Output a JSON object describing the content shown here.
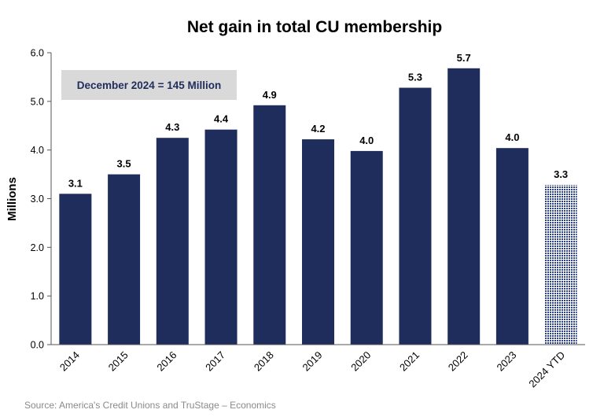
{
  "chart_data": {
    "type": "bar",
    "title": "Net gain in total CU membership",
    "xlabel": "",
    "ylabel": "Millions",
    "ylim": [
      0,
      6
    ],
    "yticks": [
      "0.0",
      "1.0",
      "2.0",
      "3.0",
      "4.0",
      "5.0",
      "6.0"
    ],
    "categories": [
      "2014",
      "2015",
      "2016",
      "2017",
      "2018",
      "2019",
      "2020",
      "2021",
      "2022",
      "2023",
      "2024 YTD"
    ],
    "values": [
      3.1,
      3.5,
      4.25,
      4.42,
      4.92,
      4.22,
      3.98,
      5.28,
      5.68,
      4.04,
      3.28
    ],
    "data_labels": [
      "3.1",
      "3.5",
      "4.3",
      "4.4",
      "4.9",
      "4.2",
      "4.0",
      "5.3",
      "5.7",
      "4.0",
      "3.3"
    ],
    "annotation": "December 2024 = 145 Million",
    "grid": false,
    "legend": "none",
    "colors": {
      "bar": "#1f2d5c",
      "ytd_pattern": "#2b3f8f",
      "annotation_box": "#d9d9d9"
    }
  },
  "source": "Source: America's Credit Unions and TruStage – Economics"
}
